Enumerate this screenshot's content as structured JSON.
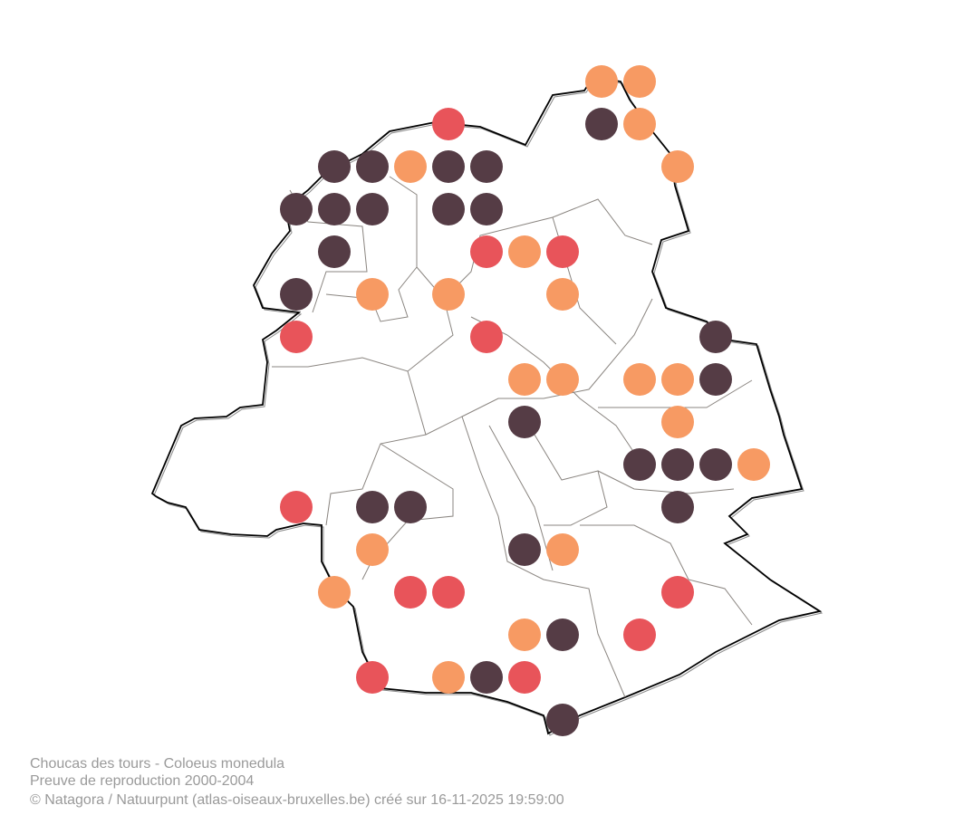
{
  "caption": {
    "species": "Choucas des tours - Coloeus monedula",
    "period": "Preuve de reproduction 2000-2004",
    "credit": "© Natagora / Natuurpunt (atlas-oiseaux-bruxelles.be) créé sur 16-11-2025 19:59:00"
  }
}
